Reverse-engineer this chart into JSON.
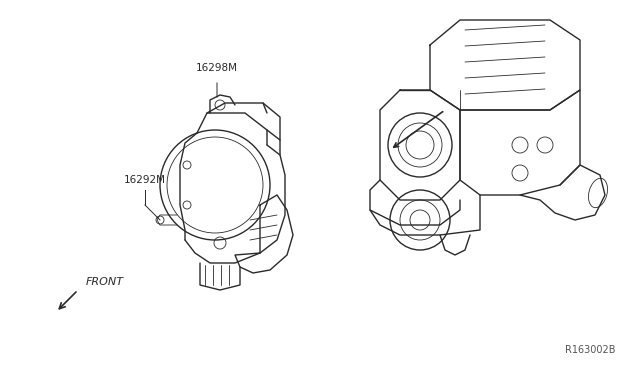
{
  "bg_color": "#ffffff",
  "line_color": "#2a2a2a",
  "label_16298BM": "16298M",
  "label_16292M": "16292M",
  "label_front": "FRONT",
  "label_ref": "R163002B",
  "fig_width": 6.4,
  "fig_height": 3.72,
  "dpi": 100
}
